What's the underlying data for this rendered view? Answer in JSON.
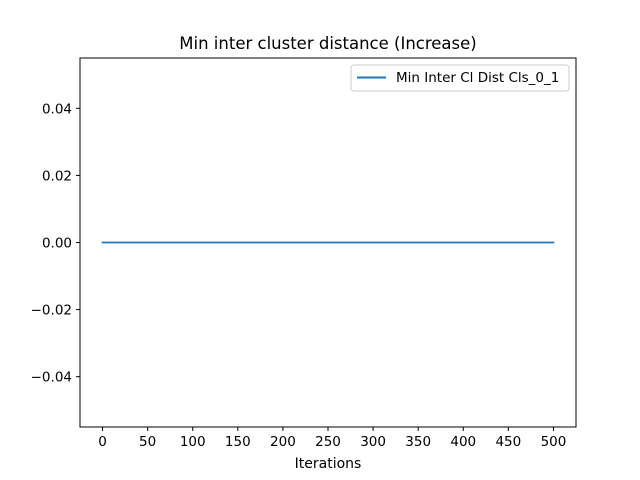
{
  "chart_data": {
    "type": "line",
    "title": "Min inter cluster distance (Increase)",
    "xlabel": "Iterations",
    "ylabel": "",
    "xlim": [
      -25,
      525
    ],
    "ylim": [
      -0.055,
      0.055
    ],
    "x_ticks": [
      0,
      50,
      100,
      150,
      200,
      250,
      300,
      350,
      400,
      450,
      500
    ],
    "x_tick_labels": [
      "0",
      "50",
      "100",
      "150",
      "200",
      "250",
      "300",
      "350",
      "400",
      "450",
      "500"
    ],
    "y_ticks": [
      -0.04,
      -0.02,
      0.0,
      0.02,
      0.04
    ],
    "y_tick_labels": [
      "−0.04",
      "−0.02",
      "0.00",
      "0.02",
      "0.04"
    ],
    "grid": false,
    "legend_position": "top-right",
    "series": [
      {
        "name": "Min Inter Cl Dist Cls_0_1",
        "color": "#1f77b4",
        "x": [
          0,
          500
        ],
        "y": [
          0.0,
          0.0
        ]
      }
    ]
  }
}
